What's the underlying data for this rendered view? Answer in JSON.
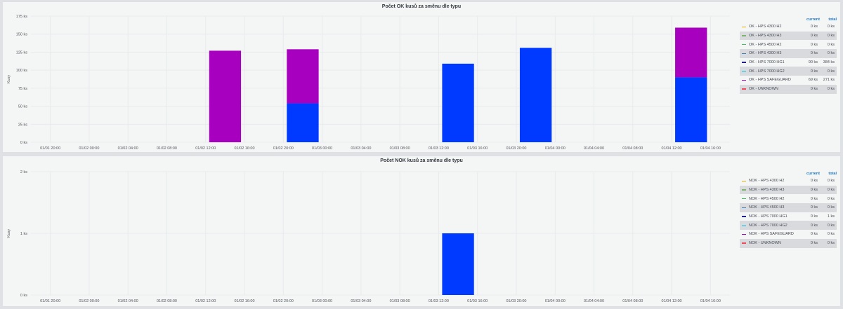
{
  "colors": {
    "grid": "#e6e8ea",
    "axis_text": "#52575c",
    "blue": "#0039ff",
    "purple": "#a800bf"
  },
  "panels": [
    {
      "id": "ok",
      "title": "Počet OK kusů za směnu dle typu",
      "legend_header": {
        "current": "current",
        "total": "total"
      },
      "legend": [
        {
          "name": "OK - HPS 4300 H2",
          "current": "0 ks",
          "total": "0 ks",
          "color": "#e5ac0e"
        },
        {
          "name": "OK - HPS 4300 H3",
          "current": "0 ks",
          "total": "0 ks",
          "color": "#7eb26d"
        },
        {
          "name": "OK - HPS 4500 H2",
          "current": "0 ks",
          "total": "0 ks",
          "color": "#3fc35b"
        },
        {
          "name": "OK - HPS 4300 H3",
          "current": "0 ks",
          "total": "0 ks",
          "color": "#447ebc"
        },
        {
          "name": "OK - HPS 7000 HG1",
          "current": "90 ks",
          "total": "384 ks",
          "color": "#1f1f8f"
        },
        {
          "name": "OK - HPS 7000 HG2",
          "current": "0 ks",
          "total": "0 ks",
          "color": "#6ed0e0"
        },
        {
          "name": "OK - HPS SAFEGUARD",
          "current": "69 ks",
          "total": "271 ks",
          "color": "#a800bf"
        },
        {
          "name": "OK - UNKNOWN",
          "current": "0 ks",
          "total": "0 ks",
          "color": "#f2495c"
        }
      ]
    },
    {
      "id": "nok",
      "title": "Počet NOK kusů za směnu dle typu",
      "legend_header": {
        "current": "current",
        "total": "total"
      },
      "legend": [
        {
          "name": "NOK - HPS 4300 H2",
          "current": "0 ks",
          "total": "0 ks",
          "color": "#e5ac0e"
        },
        {
          "name": "NOK - HPS 4300 H3",
          "current": "0 ks",
          "total": "0 ks",
          "color": "#7eb26d"
        },
        {
          "name": "NOK - HPS 4500 H2",
          "current": "0 ks",
          "total": "0 ks",
          "color": "#3fc35b"
        },
        {
          "name": "NOK - HPS 4500 H3",
          "current": "0 ks",
          "total": "0 ks",
          "color": "#447ebc"
        },
        {
          "name": "NOK - HPS 7000 HG1",
          "current": "0 ks",
          "total": "1 ks",
          "color": "#1f1f8f"
        },
        {
          "name": "NOK - HPS 7000 HG2",
          "current": "0 ks",
          "total": "0 ks",
          "color": "#6ed0e0"
        },
        {
          "name": "NOK - HPS SAFEGUARD",
          "current": "0 ks",
          "total": "0 ks",
          "color": "#a800bf"
        },
        {
          "name": "NOK - UNKNOWN",
          "current": "0 ks",
          "total": "0 ks",
          "color": "#f2495c"
        }
      ]
    }
  ],
  "chart_data": [
    {
      "type": "bar",
      "stacked": true,
      "title": "Počet OK kusů za směnu dle typu",
      "ylabel": "Kusy",
      "ylim": [
        0,
        175
      ],
      "y_ticks": [
        "0 ks",
        "25 ks",
        "50 ks",
        "75 ks",
        "100 ks",
        "125 ks",
        "150 ks",
        "175 ks"
      ],
      "x_ticks": [
        "01/01 20:00",
        "01/02 00:00",
        "01/02 04:00",
        "01/02 08:00",
        "01/02 12:00",
        "01/02 16:00",
        "01/02 20:00",
        "01/03 00:00",
        "01/03 04:00",
        "01/03 08:00",
        "01/03 12:00",
        "01/03 16:00",
        "01/03 20:00",
        "01/04 00:00",
        "01/04 04:00",
        "01/04 08:00",
        "01/04 12:00",
        "01/04 16:00"
      ],
      "categories": [
        "01/02 12:00",
        "01/02 20:00",
        "01/03 12:00",
        "01/03 20:00",
        "01/04 12:00"
      ],
      "series": [
        {
          "name": "OK - HPS 7000 HG1",
          "color": "#0039ff",
          "values": [
            0,
            54,
            109,
            131,
            90
          ]
        },
        {
          "name": "OK - HPS SAFEGUARD",
          "color": "#a800bf",
          "values": [
            127,
            75,
            0,
            0,
            69
          ]
        }
      ]
    },
    {
      "type": "bar",
      "stacked": true,
      "title": "Počet NOK kusů za směnu dle typu",
      "ylabel": "Kusy",
      "ylim": [
        0,
        2
      ],
      "y_ticks": [
        "0 ks",
        "1 ks",
        "2 ks"
      ],
      "x_ticks": [
        "01/01 20:00",
        "01/02 00:00",
        "01/02 04:00",
        "01/02 08:00",
        "01/02 12:00",
        "01/02 16:00",
        "01/02 20:00",
        "01/03 00:00",
        "01/03 04:00",
        "01/03 08:00",
        "01/03 12:00",
        "01/03 16:00",
        "01/03 20:00",
        "01/04 00:00",
        "01/04 04:00",
        "01/04 08:00",
        "01/04 12:00",
        "01/04 16:00"
      ],
      "categories": [
        "01/03 12:00"
      ],
      "series": [
        {
          "name": "NOK - HPS 7000 HG1",
          "color": "#0039ff",
          "values": [
            1
          ]
        }
      ]
    }
  ]
}
